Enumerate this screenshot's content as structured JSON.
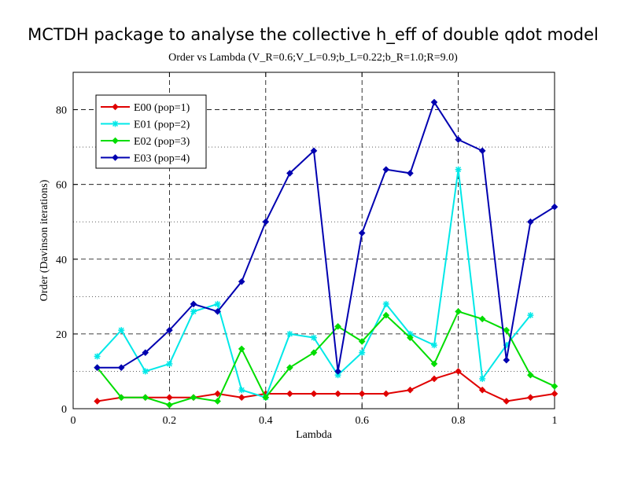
{
  "chart_data": {
    "type": "line",
    "title": "MCTDH package to analyse the collective h_eff of double qdot model",
    "subtitle": "Order vs Lambda (V_R=0.6;V_L=0.9;b_L=0.22;b_R=1.0;R=9.0)",
    "xlabel": "Lambda",
    "ylabel": "Order (Davinson iterations)",
    "xlim": [
      0,
      1
    ],
    "ylim": [
      0,
      90
    ],
    "xticks": [
      "0",
      "0.2",
      "0.4",
      "0.6",
      "0.8",
      "1"
    ],
    "xtick_values": [
      0,
      0.2,
      0.4,
      0.6,
      0.8,
      1.0
    ],
    "yticks": [
      "0",
      "20",
      "40",
      "60",
      "80"
    ],
    "ytick_values": [
      0,
      20,
      40,
      60,
      80
    ],
    "grid": true,
    "legend_position": "top-left",
    "x": [
      0.05,
      0.1,
      0.15,
      0.2,
      0.25,
      0.3,
      0.35,
      0.4,
      0.45,
      0.5,
      0.55,
      0.6,
      0.65,
      0.7,
      0.75,
      0.8,
      0.85,
      0.9,
      0.95,
      1.0
    ],
    "series": [
      {
        "name": "E00 (pop=1)",
        "color": "#e00000",
        "marker": "diamond",
        "values": [
          2,
          3,
          3,
          3,
          3,
          4,
          3,
          4,
          4,
          4,
          4,
          4,
          4,
          5,
          8,
          10,
          5,
          2,
          3,
          4
        ]
      },
      {
        "name": "E01 (pop=2)",
        "color": "#00e8e8",
        "marker": "star",
        "values": [
          14,
          21,
          10,
          12,
          26,
          28,
          5,
          3,
          20,
          19,
          9,
          15,
          28,
          20,
          17,
          64,
          8,
          17,
          25,
          null
        ]
      },
      {
        "name": "E02 (pop=3)",
        "color": "#00dd00",
        "marker": "diamond",
        "values": [
          11,
          3,
          3,
          1,
          3,
          2,
          16,
          3,
          11,
          15,
          22,
          18,
          25,
          19,
          12,
          26,
          24,
          21,
          9,
          6
        ]
      },
      {
        "name": "E03 (pop=4)",
        "color": "#0000b0",
        "marker": "diamond",
        "values": [
          11,
          11,
          15,
          21,
          28,
          26,
          34,
          50,
          63,
          69,
          10,
          47,
          64,
          63,
          82,
          72,
          69,
          13,
          50,
          54
        ]
      }
    ]
  }
}
